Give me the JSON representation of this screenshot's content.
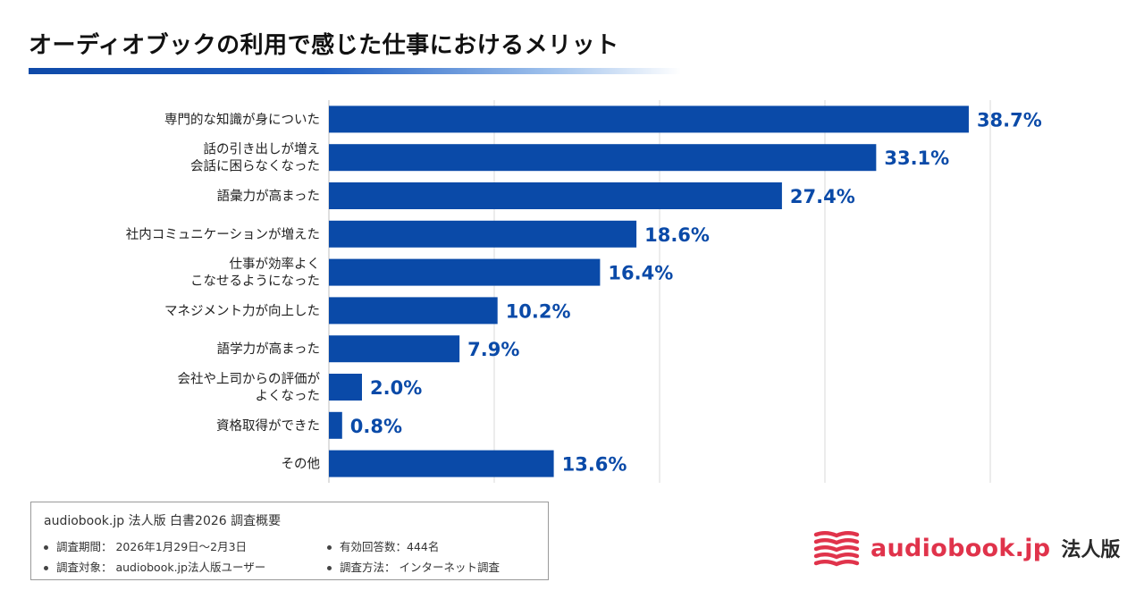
{
  "header": {
    "title": "オーディオブックの利用で感じた仕事におけるメリット"
  },
  "chart_data": {
    "type": "bar",
    "orientation": "horizontal",
    "title": "オーディオブックの利用で感じた仕事におけるメリット",
    "categories": [
      [
        "専門的な知識が身についた"
      ],
      [
        "話の引き出しが増え",
        "会話に困らなくなった"
      ],
      [
        "語彙力が高まった"
      ],
      [
        "社内コミュニケーションが増えた"
      ],
      [
        "仕事が効率よく",
        "こなせるようになった"
      ],
      [
        "マネジメント力が向上した"
      ],
      [
        "語学力が高まった"
      ],
      [
        "会社や上司からの評価が",
        "よくなった"
      ],
      [
        "資格取得ができた"
      ],
      [
        "その他"
      ]
    ],
    "values": [
      38.7,
      33.1,
      27.4,
      18.6,
      16.4,
      10.2,
      7.9,
      2.0,
      0.8,
      13.6
    ],
    "value_labels": [
      "38.7%",
      "33.1%",
      "27.4%",
      "18.6%",
      "16.4%",
      "10.2%",
      "7.9%",
      "2.0%",
      "0.8%",
      "13.6%"
    ],
    "xlim": [
      0,
      40
    ],
    "gridlines": [
      10,
      20,
      30,
      40
    ],
    "bar_color": "#0a4aa8",
    "label_color": "#0a4aa8",
    "xlabel": "",
    "ylabel": ""
  },
  "survey": {
    "title": "audiobook.jp 法人版 白書2026 調査概要",
    "items": [
      "調査期間： 2026年1月29日〜2月3日",
      "有効回答数：444名",
      "調査対象： audiobook.jp法人版ユーザー",
      "調査方法： インターネット調査"
    ]
  },
  "logo": {
    "name": "audiobook.jp",
    "suffix": "法人版",
    "icon": "open-book-icon",
    "color": "#e0334b"
  }
}
